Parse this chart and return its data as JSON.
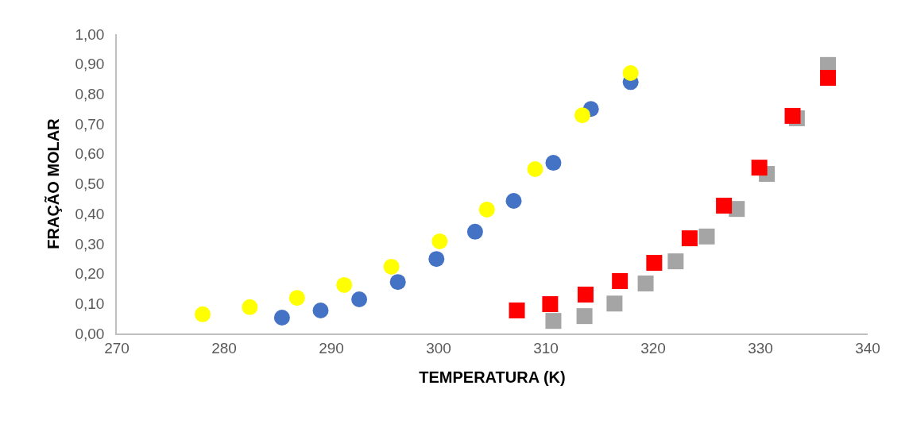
{
  "chart_data": {
    "type": "scatter",
    "xlabel": "TEMPERATURA (K)",
    "ylabel": "FRAÇÃO MOLAR",
    "xlim": [
      270,
      340
    ],
    "xticks": [
      270,
      280,
      290,
      300,
      310,
      320,
      330,
      340
    ],
    "ylim": [
      0,
      1
    ],
    "yticks": [
      {
        "value": 0,
        "label": "0,00"
      },
      {
        "value": 0.1,
        "label": "0,10"
      },
      {
        "value": 0.2,
        "label": "0,20"
      },
      {
        "value": 0.3,
        "label": "0,30"
      },
      {
        "value": 0.4,
        "label": "0,40"
      },
      {
        "value": 0.5,
        "label": "0,50"
      },
      {
        "value": 0.6,
        "label": "0,60"
      },
      {
        "value": 0.7,
        "label": "0,70"
      },
      {
        "value": 0.8,
        "label": "0,80"
      },
      {
        "value": 0.9,
        "label": "0,90"
      },
      {
        "value": 1,
        "label": "1,00"
      }
    ],
    "grid": false,
    "legend": false,
    "series": [
      {
        "color": "#4472c4",
        "marker": "circle",
        "x": [
          285.4,
          289.0,
          292.6,
          296.2,
          299.8,
          303.4,
          307.0,
          310.7,
          314.2,
          317.9
        ],
        "values": [
          0.053,
          0.077,
          0.114,
          0.172,
          0.249,
          0.34,
          0.443,
          0.57,
          0.75,
          0.84
        ]
      },
      {
        "color": "#ffff00",
        "marker": "circle",
        "x": [
          278.0,
          282.4,
          286.8,
          291.2,
          295.6,
          300.1,
          304.5,
          309.0,
          313.4,
          317.9
        ],
        "values": [
          0.064,
          0.088,
          0.119,
          0.162,
          0.223,
          0.308,
          0.414,
          0.549,
          0.729,
          0.87
        ]
      },
      {
        "color": "#a5a5a5",
        "marker": "square",
        "x": [
          310.7,
          313.6,
          316.4,
          319.3,
          322.1,
          325.0,
          327.8,
          330.6,
          333.4,
          336.3
        ],
        "values": [
          0.042,
          0.058,
          0.1,
          0.167,
          0.241,
          0.324,
          0.416,
          0.533,
          0.719,
          0.897
        ]
      },
      {
        "color": "#ff0000",
        "marker": "square",
        "x": [
          307.3,
          310.4,
          313.7,
          316.9,
          320.1,
          323.4,
          326.6,
          329.9,
          333.0,
          336.3
        ],
        "values": [
          0.077,
          0.098,
          0.13,
          0.175,
          0.236,
          0.318,
          0.427,
          0.554,
          0.727,
          0.854
        ]
      }
    ]
  }
}
